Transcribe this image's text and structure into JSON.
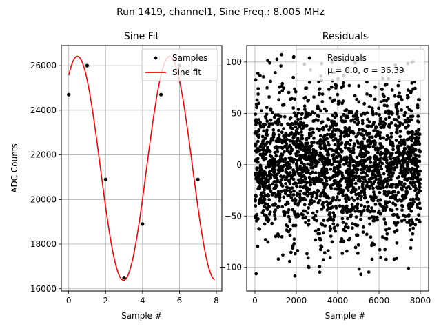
{
  "figure_title": "Run 1419, channel1, Sine Freq.: 8.005 MHz",
  "chart_data": [
    {
      "type": "scatter",
      "title": "Sine Fit",
      "xlabel": "Sample #",
      "ylabel": "ADC Counts",
      "xlim": [
        -0.4,
        8.3
      ],
      "ylim": [
        15900,
        26900
      ],
      "xticks": [
        0,
        2,
        4,
        6,
        8
      ],
      "yticks": [
        16000,
        18000,
        20000,
        22000,
        24000,
        26000
      ],
      "grid": true,
      "legend_position": "upper right",
      "series": [
        {
          "name": "Samples",
          "kind": "points",
          "color": "#000000",
          "x": [
            0,
            1,
            2,
            3,
            4,
            5,
            6,
            7
          ],
          "y": [
            24700,
            26000,
            20900,
            16500,
            18900,
            24700,
            26000,
            20900
          ]
        },
        {
          "name": "Sine fit",
          "kind": "line",
          "color": "#ff0000",
          "model": {
            "offset": 21400,
            "amplitude": 5020,
            "cycles_per_sample": 0.2,
            "phase_rad": 0.0
          },
          "x_range": [
            0,
            7.9
          ]
        }
      ]
    },
    {
      "type": "scatter",
      "title": "Residuals",
      "xlabel": "Sample #",
      "ylabel": "",
      "xlim": [
        -400,
        8400
      ],
      "ylim": [
        -123,
        116
      ],
      "xticks": [
        0,
        2000,
        4000,
        6000,
        8000
      ],
      "yticks": [
        -100,
        -50,
        0,
        50,
        100
      ],
      "grid": true,
      "legend_position": "upper right",
      "series": [
        {
          "name": "Residuals",
          "color": "#000000",
          "x_range": [
            0,
            8000
          ],
          "n_points": 8000,
          "stats": {
            "mean": 0.0,
            "sigma": 36.39
          },
          "envelope_period_samples": 1250
        }
      ],
      "legend_extra_line": "μ = 0.0, σ = 36.39"
    }
  ]
}
